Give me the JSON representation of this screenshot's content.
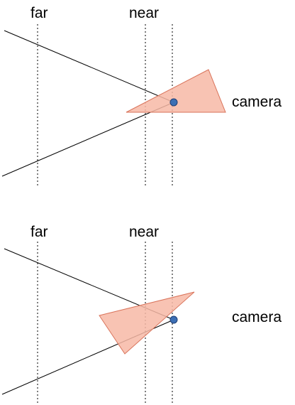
{
  "diagrams": [
    {
      "labels": {
        "far": "far",
        "near": "near",
        "camera": "camera"
      }
    },
    {
      "labels": {
        "far": "far",
        "near": "near",
        "camera": "camera"
      }
    }
  ],
  "colors": {
    "triangle_fill": "#f7b9a6",
    "triangle_stroke": "#d9735a",
    "camera_dot": "#3c6fb4",
    "lines": "#000000"
  }
}
